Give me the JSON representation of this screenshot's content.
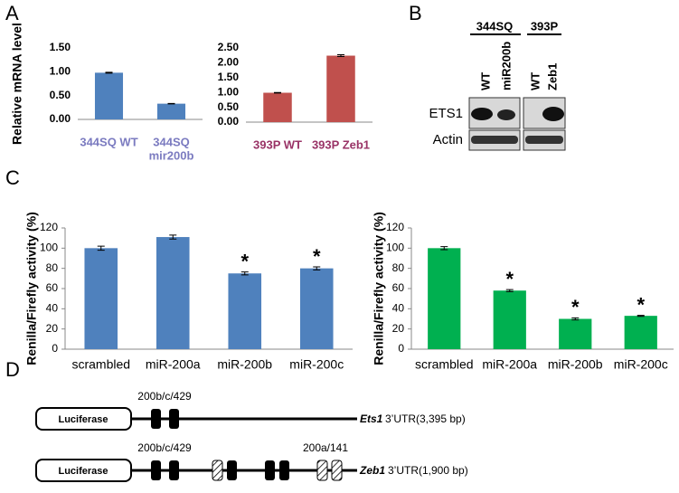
{
  "panel_labels": [
    "A",
    "B",
    "C",
    "D"
  ],
  "chart_data": [
    {
      "type": "bar",
      "ylabel": "Relative mRNA level",
      "categories": [
        [
          "344SQ WT"
        ],
        [
          "344SQ",
          "mir200b"
        ]
      ],
      "values": [
        0.98,
        0.33
      ],
      "errors": [
        0.01,
        0.005
      ],
      "color": "#4f81bd",
      "label_color": "#7b7bc0",
      "ylim": [
        0,
        1.5
      ],
      "yticks": [
        {
          "value": 0,
          "label": "0.00"
        },
        {
          "value": 0.5,
          "label": "0.50"
        },
        {
          "value": 1,
          "label": "1.00"
        },
        {
          "value": 1.5,
          "label": "1.50"
        }
      ]
    },
    {
      "type": "bar",
      "categories": [
        [
          "393P WT"
        ],
        [
          "393P Zeb1"
        ]
      ],
      "values": [
        0.99,
        2.24
      ],
      "errors": [
        0.01,
        0.03
      ],
      "color": "#c0504d",
      "label_color": "#993366",
      "ylim": [
        0,
        2.5
      ],
      "yticks": [
        {
          "value": 0,
          "label": "0.00"
        },
        {
          "value": 0.5,
          "label": "0.50"
        },
        {
          "value": 1,
          "label": "1.00"
        },
        {
          "value": 1.5,
          "label": "1.50"
        },
        {
          "value": 2,
          "label": "2.00"
        },
        {
          "value": 2.5,
          "label": "2.50"
        }
      ]
    },
    {
      "type": "bar",
      "ylabel": "Renilla/Firefly activity (%)",
      "categories": [
        "scrambled",
        "miR-200a",
        "miR-200b",
        "miR-200c"
      ],
      "values": [
        100,
        111,
        75,
        80
      ],
      "errors": [
        2,
        2,
        1.5,
        1.5
      ],
      "color": "#4f81bd",
      "label_color": "#000000",
      "ylim": [
        0,
        120
      ],
      "yticks": [
        0,
        20,
        40,
        60,
        80,
        100,
        120
      ],
      "annotations": [
        {
          "index": 2,
          "text": "*"
        },
        {
          "index": 3,
          "text": "*"
        }
      ]
    },
    {
      "type": "bar",
      "ylabel": "Renilla/Firefly activity (%)",
      "categories": [
        "scrambled",
        "miR-200a",
        "miR-200b",
        "miR-200c"
      ],
      "values": [
        100,
        58,
        30,
        33
      ],
      "errors": [
        1.5,
        1,
        1,
        0.5
      ],
      "color": "#00b050",
      "label_color": "#000000",
      "ylim": [
        0,
        120
      ],
      "yticks": [
        0,
        20,
        40,
        60,
        80,
        100,
        120
      ],
      "annotations": [
        {
          "index": 1,
          "text": "*"
        },
        {
          "index": 2,
          "text": "*"
        },
        {
          "index": 3,
          "text": "*"
        }
      ]
    }
  ],
  "blot": {
    "groups": [
      "344SQ",
      "393P"
    ],
    "lanes": [
      "WT",
      "miR200b",
      "WT",
      "Zeb1"
    ],
    "rows": [
      "ETS1",
      "Actin"
    ]
  },
  "diagram": {
    "rows": [
      {
        "box": "Luciferase",
        "sites": [
          "200b/c/429"
        ],
        "gene": "Ets1",
        "utr": "3’UTR(3,395 bp)"
      },
      {
        "box": "Luciferase",
        "sites": [
          "200b/c/429",
          "200a/141"
        ],
        "gene": "Zeb1",
        "utr": "3’UTR(1,900 bp)"
      }
    ]
  }
}
